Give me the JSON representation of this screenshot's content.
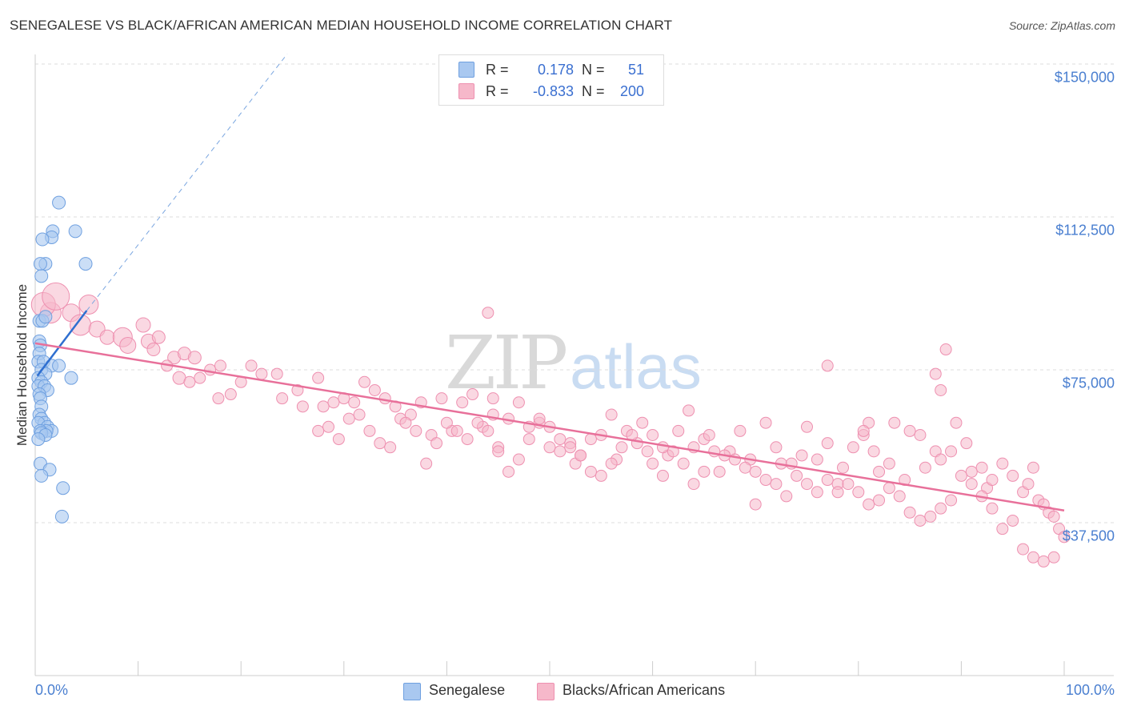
{
  "title": "SENEGALESE VS BLACK/AFRICAN AMERICAN MEDIAN HOUSEHOLD INCOME CORRELATION CHART",
  "source": "Source: ZipAtlas.com",
  "watermark": {
    "part1": "ZIP",
    "part2": "atlas"
  },
  "legend": {
    "rows": [
      {
        "r_label": "R =",
        "r_value": "0.178",
        "n_label": "N =",
        "n_value": "51",
        "color": "#a9c8f0"
      },
      {
        "r_label": "R =",
        "r_value": "-0.833",
        "n_label": "N =",
        "n_value": "200",
        "color": "#f6b8ca"
      }
    ]
  },
  "bottom_legend": [
    {
      "label": "Senegalese",
      "color": "#a9c8f0"
    },
    {
      "label": "Blacks/African Americans",
      "color": "#f6b8ca"
    }
  ],
  "chart_data": {
    "type": "scatter",
    "title": "SENEGALESE VS BLACK/AFRICAN AMERICAN MEDIAN HOUSEHOLD INCOME CORRELATION CHART",
    "xlabel": "",
    "ylabel": "Median Household Income",
    "xlim": [
      0,
      100
    ],
    "ylim": [
      0,
      150000
    ],
    "x_tick_labels": [
      "0.0%",
      "100.0%"
    ],
    "y_ticks": [
      37500,
      75000,
      112500,
      150000
    ],
    "y_tick_labels": [
      "$37,500",
      "$75,000",
      "$112,500",
      "$150,000"
    ],
    "grid": true,
    "series": [
      {
        "name": "Senegalese",
        "color": "#6fa0e0",
        "fill": "#a9c8f0",
        "trend": {
          "x": [
            0.2,
            5.0
          ],
          "y": [
            73500,
            89500
          ],
          "color": "#2f6fd0"
        },
        "trend_extension": {
          "x": [
            5.0,
            24.5
          ],
          "y": [
            89500,
            152500
          ]
        },
        "points": [
          [
            2.3,
            116
          ],
          [
            1.7,
            109
          ],
          [
            1.6,
            107.5
          ],
          [
            0.7,
            107
          ],
          [
            3.9,
            109
          ],
          [
            4.9,
            101
          ],
          [
            1.0,
            101
          ],
          [
            0.5,
            101
          ],
          [
            0.6,
            98
          ],
          [
            0.4,
            87
          ],
          [
            0.7,
            87
          ],
          [
            1.0,
            88
          ],
          [
            0.4,
            82
          ],
          [
            0.5,
            81
          ],
          [
            0.4,
            79
          ],
          [
            0.3,
            77
          ],
          [
            0.8,
            77
          ],
          [
            1.6,
            76
          ],
          [
            2.3,
            76
          ],
          [
            0.6,
            75
          ],
          [
            1.0,
            74
          ],
          [
            0.3,
            73
          ],
          [
            0.6,
            72
          ],
          [
            3.5,
            73
          ],
          [
            0.3,
            71
          ],
          [
            0.9,
            71
          ],
          [
            1.2,
            70
          ],
          [
            0.4,
            69
          ],
          [
            0.5,
            68
          ],
          [
            0.6,
            66
          ],
          [
            0.4,
            64
          ],
          [
            0.6,
            63
          ],
          [
            0.9,
            62
          ],
          [
            0.3,
            62
          ],
          [
            1.2,
            61
          ],
          [
            1.6,
            60
          ],
          [
            1.1,
            60
          ],
          [
            0.5,
            60
          ],
          [
            0.6,
            59.5
          ],
          [
            1.0,
            59
          ],
          [
            0.3,
            58
          ],
          [
            0.5,
            52
          ],
          [
            1.4,
            50.5
          ],
          [
            0.6,
            49
          ],
          [
            2.7,
            46
          ],
          [
            2.6,
            39
          ]
        ]
      },
      {
        "name": "Blacks/African Americans",
        "color": "#ee90b0",
        "fill": "#f6b8ca",
        "trend": {
          "x": [
            0.0,
            100.0
          ],
          "y": [
            81500,
            40500
          ],
          "color": "#e8709a"
        },
        "points": [
          [
            1.5,
            89,
            26
          ],
          [
            0.8,
            91,
            30
          ],
          [
            2.0,
            93,
            34
          ],
          [
            3.5,
            89,
            22
          ],
          [
            5.2,
            91,
            24
          ],
          [
            4.4,
            86,
            26
          ],
          [
            6.0,
            85,
            20
          ],
          [
            7.0,
            83,
            18
          ],
          [
            8.5,
            83,
            24
          ],
          [
            9.0,
            81,
            20
          ],
          [
            10.5,
            86,
            18
          ],
          [
            11.0,
            82,
            18
          ],
          [
            12.0,
            83,
            16
          ],
          [
            11.5,
            80,
            16
          ],
          [
            13.5,
            78,
            16
          ],
          [
            14.5,
            79,
            16
          ],
          [
            15.5,
            78,
            16
          ],
          [
            12.8,
            76,
            14
          ],
          [
            14.0,
            73,
            16
          ],
          [
            15.0,
            72,
            14
          ],
          [
            16.0,
            73,
            14
          ],
          [
            17.0,
            75,
            14
          ],
          [
            18.0,
            76,
            14
          ],
          [
            17.8,
            68,
            14
          ],
          [
            19.0,
            69,
            14
          ],
          [
            20.0,
            72,
            14
          ],
          [
            21.0,
            76,
            14
          ],
          [
            22.0,
            74,
            14
          ],
          [
            23.5,
            74,
            14
          ],
          [
            24.0,
            68,
            14
          ],
          [
            25.5,
            70,
            14
          ],
          [
            26.0,
            66,
            14
          ],
          [
            27.5,
            73,
            14
          ],
          [
            28.0,
            66,
            14
          ],
          [
            29.0,
            67,
            14
          ],
          [
            30.0,
            68,
            14
          ],
          [
            31.0,
            67,
            14
          ],
          [
            32.0,
            72,
            14
          ],
          [
            33.0,
            70,
            14
          ],
          [
            34.0,
            68,
            14
          ],
          [
            35.0,
            66,
            14
          ],
          [
            35.5,
            63,
            14
          ],
          [
            36.5,
            64,
            14
          ],
          [
            37.5,
            67,
            14
          ],
          [
            38.5,
            59,
            14
          ],
          [
            39.5,
            68,
            14
          ],
          [
            40.5,
            60,
            14
          ],
          [
            41.5,
            67,
            14
          ],
          [
            42.5,
            69,
            14
          ],
          [
            43.5,
            61,
            14
          ],
          [
            44.5,
            64,
            14
          ],
          [
            45.0,
            56,
            14
          ],
          [
            46.0,
            63,
            14
          ],
          [
            47.0,
            67,
            14
          ],
          [
            48.0,
            61,
            14
          ],
          [
            49.0,
            62,
            14
          ],
          [
            50.0,
            56,
            14
          ],
          [
            51.0,
            55,
            14
          ],
          [
            52.0,
            57,
            14
          ],
          [
            52.5,
            52,
            14
          ],
          [
            53.0,
            54,
            14
          ],
          [
            54.0,
            58,
            14
          ],
          [
            55.0,
            59,
            14
          ],
          [
            56.0,
            64,
            14
          ],
          [
            56.5,
            53,
            14
          ],
          [
            57.5,
            60,
            14
          ],
          [
            58.5,
            57,
            14
          ],
          [
            59.5,
            55,
            14
          ],
          [
            60.0,
            52,
            14
          ],
          [
            61.0,
            49,
            14
          ],
          [
            61.5,
            54,
            14
          ],
          [
            62.5,
            60,
            14
          ],
          [
            63.5,
            65,
            14
          ],
          [
            64.0,
            56,
            14
          ],
          [
            65.0,
            58,
            14
          ],
          [
            65.5,
            59,
            14
          ],
          [
            66.5,
            50,
            14
          ],
          [
            67.5,
            55,
            14
          ],
          [
            68.5,
            60,
            14
          ],
          [
            69.5,
            53,
            14
          ],
          [
            70.0,
            42,
            14
          ],
          [
            71.0,
            62,
            14
          ],
          [
            72.0,
            56,
            14
          ],
          [
            72.5,
            52,
            14
          ],
          [
            73.5,
            52,
            14
          ],
          [
            74.5,
            54,
            14
          ],
          [
            75.0,
            61,
            14
          ],
          [
            76.0,
            53,
            14
          ],
          [
            77.0,
            57,
            14
          ],
          [
            78.0,
            47,
            14
          ],
          [
            78.5,
            51,
            14
          ],
          [
            79.5,
            56,
            14
          ],
          [
            80.5,
            59,
            14
          ],
          [
            81.5,
            55,
            14
          ],
          [
            82.0,
            50,
            14
          ],
          [
            83.0,
            52,
            14
          ],
          [
            83.5,
            62,
            14
          ],
          [
            84.5,
            48,
            14
          ],
          [
            85.0,
            60,
            14
          ],
          [
            86.0,
            59,
            14
          ],
          [
            86.5,
            51,
            14
          ],
          [
            87.5,
            55,
            14
          ],
          [
            88.0,
            53,
            14
          ],
          [
            89.0,
            55,
            14
          ],
          [
            89.5,
            62,
            14
          ],
          [
            90.5,
            57,
            14
          ],
          [
            91.0,
            50,
            14
          ],
          [
            92.0,
            51,
            14
          ],
          [
            92.5,
            46,
            14
          ],
          [
            93.0,
            48,
            14
          ],
          [
            94.0,
            52,
            14
          ],
          [
            95.0,
            49,
            14
          ],
          [
            96.0,
            45,
            14
          ],
          [
            96.5,
            47,
            14
          ],
          [
            97.0,
            51,
            14
          ],
          [
            97.5,
            43,
            14
          ],
          [
            98.0,
            42,
            14
          ],
          [
            98.5,
            40,
            14
          ],
          [
            99.0,
            39,
            14
          ],
          [
            99.5,
            36,
            14
          ],
          [
            100.0,
            34,
            14
          ],
          [
            99.0,
            29,
            14
          ],
          [
            98.0,
            28,
            14
          ],
          [
            97.0,
            29,
            14
          ],
          [
            96.0,
            31,
            14
          ],
          [
            95.0,
            38,
            14
          ],
          [
            94.0,
            36,
            14
          ],
          [
            93.0,
            41,
            14
          ],
          [
            92.0,
            44,
            14
          ],
          [
            91.0,
            47,
            14
          ],
          [
            90.0,
            49,
            14
          ],
          [
            89.0,
            43,
            14
          ],
          [
            88.0,
            41,
            14
          ],
          [
            87.0,
            39,
            14
          ],
          [
            86.0,
            38,
            14
          ],
          [
            85.0,
            40,
            14
          ],
          [
            84.0,
            44,
            14
          ],
          [
            83.0,
            46,
            14
          ],
          [
            82.0,
            43,
            14
          ],
          [
            81.0,
            42,
            14
          ],
          [
            80.0,
            45,
            14
          ],
          [
            79.0,
            47,
            14
          ],
          [
            78.0,
            45,
            14
          ],
          [
            77.0,
            48,
            14
          ],
          [
            76.0,
            45,
            14
          ],
          [
            75.0,
            47,
            14
          ],
          [
            74.0,
            49,
            14
          ],
          [
            73.0,
            44,
            14
          ],
          [
            72.0,
            47,
            14
          ],
          [
            71.0,
            48,
            14
          ],
          [
            70.0,
            50,
            14
          ],
          [
            69.0,
            51,
            14
          ],
          [
            68.0,
            53,
            14
          ],
          [
            67.0,
            54,
            14
          ],
          [
            66.0,
            55,
            14
          ],
          [
            65.0,
            50,
            14
          ],
          [
            64.0,
            47,
            14
          ],
          [
            63.0,
            52,
            14
          ],
          [
            62.0,
            55,
            14
          ],
          [
            61.0,
            56,
            14
          ],
          [
            60.0,
            59,
            14
          ],
          [
            59.0,
            62,
            14
          ],
          [
            58.0,
            59,
            14
          ],
          [
            57.0,
            56,
            14
          ],
          [
            56.0,
            52,
            14
          ],
          [
            55.0,
            49,
            14
          ],
          [
            54.0,
            50,
            14
          ],
          [
            53.0,
            54,
            14
          ],
          [
            52.0,
            56,
            14
          ],
          [
            51.0,
            58,
            14
          ],
          [
            50.0,
            61,
            14
          ],
          [
            49.0,
            63,
            14
          ],
          [
            48.0,
            58,
            14
          ],
          [
            47.0,
            53,
            14
          ],
          [
            46.0,
            50,
            14
          ],
          [
            45.0,
            55,
            14
          ],
          [
            44.0,
            60,
            14
          ],
          [
            43.0,
            62,
            14
          ],
          [
            42.0,
            58,
            14
          ],
          [
            41.0,
            60,
            14
          ],
          [
            40.0,
            62,
            14
          ],
          [
            39.0,
            57,
            14
          ],
          [
            38.0,
            52,
            14
          ],
          [
            37.0,
            60,
            14
          ],
          [
            36.0,
            62,
            14
          ],
          [
            34.5,
            56,
            14
          ],
          [
            33.5,
            57,
            14
          ],
          [
            32.5,
            60,
            14
          ],
          [
            31.5,
            64,
            14
          ],
          [
            30.5,
            63,
            14
          ],
          [
            29.5,
            58,
            14
          ],
          [
            28.5,
            61,
            14
          ],
          [
            27.5,
            60,
            14
          ],
          [
            44.0,
            89,
            14
          ],
          [
            44.5,
            68,
            14
          ],
          [
            77.0,
            76,
            14
          ],
          [
            88.5,
            80,
            14
          ],
          [
            87.5,
            74,
            14
          ],
          [
            88.0,
            70,
            14
          ],
          [
            81.0,
            62,
            14
          ],
          [
            80.5,
            60,
            14
          ]
        ]
      }
    ]
  }
}
